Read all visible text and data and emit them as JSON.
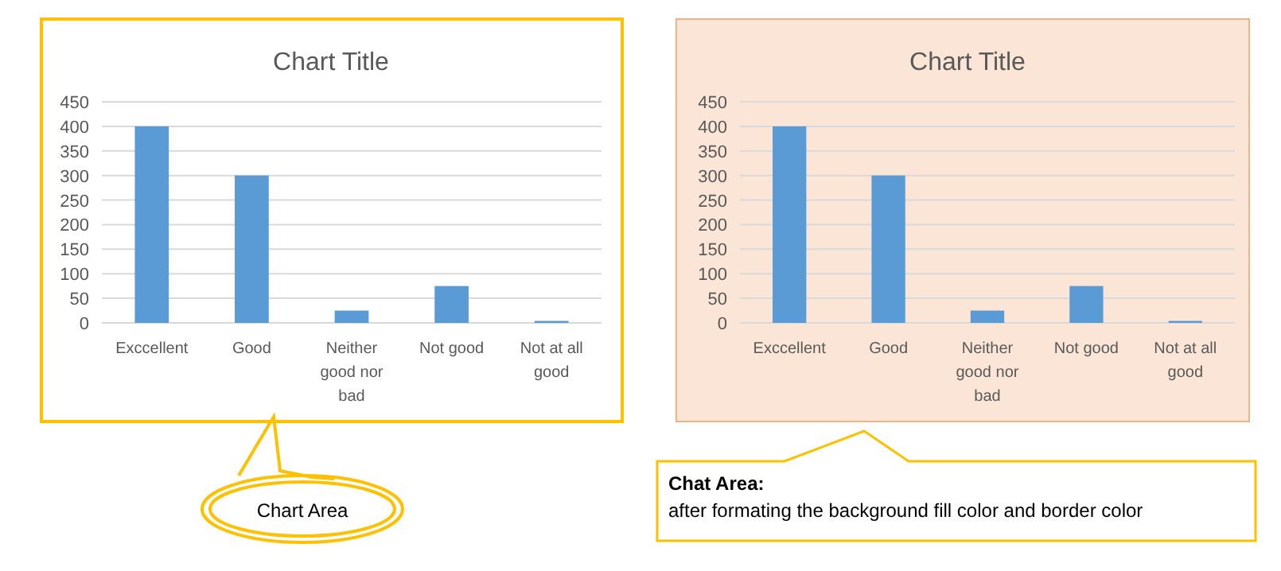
{
  "chart_data": [
    {
      "type": "bar",
      "title": "Chart Title",
      "categories": [
        "Exccellent",
        "Good",
        "Neither good nor bad",
        "Not good",
        "Not at all good"
      ],
      "values": [
        400,
        300,
        25,
        75,
        4
      ],
      "color": "#5b9bd5",
      "ylim": [
        0,
        450
      ],
      "yticks": [
        0,
        50,
        100,
        150,
        200,
        250,
        300,
        350,
        400,
        450
      ],
      "grid": "y",
      "annotations": [
        "Chart Area"
      ]
    },
    {
      "type": "bar",
      "title": "Chart Title",
      "categories": [
        "Exccellent",
        "Good",
        "Neither good nor bad",
        "Not good",
        "Not at all good"
      ],
      "values": [
        400,
        300,
        25,
        75,
        4
      ],
      "color": "#5b9bd5",
      "ylim": [
        0,
        450
      ],
      "yticks": [
        0,
        50,
        100,
        150,
        200,
        250,
        300,
        350,
        400,
        450
      ],
      "grid": "y",
      "annotations": [
        "Chat Area:",
        "after formating the background fill color and border color"
      ]
    }
  ]
}
